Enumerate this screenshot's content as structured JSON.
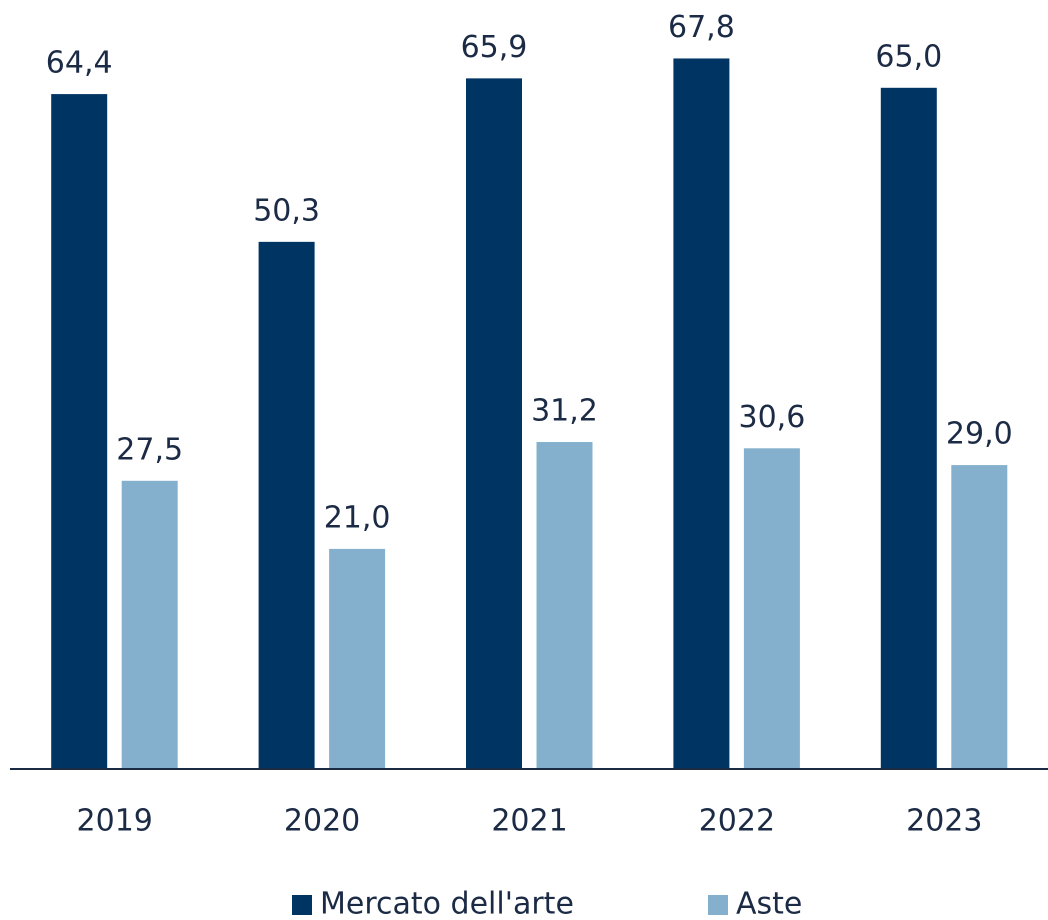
{
  "chart_data": {
    "type": "bar",
    "categories": [
      "2019",
      "2020",
      "2021",
      "2022",
      "2023"
    ],
    "series": [
      {
        "name": "Mercato dell'arte",
        "color": "#003462",
        "values": [
          64.4,
          50.3,
          65.9,
          67.8,
          65.0
        ],
        "value_labels": [
          "64,4",
          "50,3",
          "65,9",
          "67,8",
          "65,0"
        ]
      },
      {
        "name": "Aste",
        "color": "#84b0cd",
        "values": [
          27.5,
          21.0,
          31.2,
          30.6,
          29.0
        ],
        "value_labels": [
          "27,5",
          "21,0",
          "31,2",
          "30,6",
          "29,0"
        ]
      }
    ],
    "ylim": [
      0,
      70
    ],
    "legend": "bottom"
  }
}
